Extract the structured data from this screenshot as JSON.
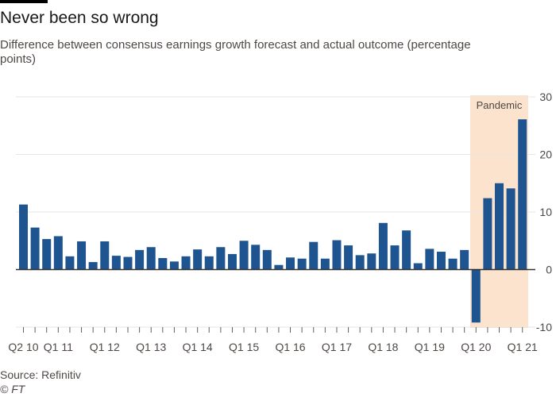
{
  "header": {
    "title": "Never been so wrong",
    "subtitle": "Difference between consensus earnings growth forecast and actual outcome (percentage points)"
  },
  "footer": {
    "source": "Source: Refinitiv",
    "copyright": "© FT"
  },
  "colors": {
    "bar": "#1e548f",
    "shade": "#fbe3ce",
    "grid": "#e9e5e1",
    "zero_line": "#33302e",
    "topbar": "#000000"
  },
  "chart_data": {
    "type": "bar",
    "title": "Never been so wrong",
    "subtitle": "Difference between consensus earnings growth forecast and actual outcome (percentage points)",
    "ylim": [
      -10,
      30
    ],
    "y_ticks": [
      -10,
      0,
      10,
      20,
      30
    ],
    "y_axis_side": "right",
    "grid": true,
    "x_tick_labels": [
      {
        "label": "Q2 10",
        "index": 0
      },
      {
        "label": "Q1 11",
        "index": 3
      },
      {
        "label": "Q1 12",
        "index": 7
      },
      {
        "label": "Q1 13",
        "index": 11
      },
      {
        "label": "Q1 14",
        "index": 15
      },
      {
        "label": "Q1 15",
        "index": 19
      },
      {
        "label": "Q1 16",
        "index": 23
      },
      {
        "label": "Q1 17",
        "index": 27
      },
      {
        "label": "Q1 18",
        "index": 31
      },
      {
        "label": "Q1 19",
        "index": 35
      },
      {
        "label": "Q1 20",
        "index": 39
      },
      {
        "label": "Q1 21",
        "index": 43
      }
    ],
    "categories": [
      "Q2 10",
      "Q3 10",
      "Q4 10",
      "Q1 11",
      "Q2 11",
      "Q3 11",
      "Q4 11",
      "Q1 12",
      "Q2 12",
      "Q3 12",
      "Q4 12",
      "Q1 13",
      "Q2 13",
      "Q3 13",
      "Q4 13",
      "Q1 14",
      "Q2 14",
      "Q3 14",
      "Q4 14",
      "Q1 15",
      "Q2 15",
      "Q3 15",
      "Q4 15",
      "Q1 16",
      "Q2 16",
      "Q3 16",
      "Q4 16",
      "Q1 17",
      "Q2 17",
      "Q3 17",
      "Q4 17",
      "Q1 18",
      "Q2 18",
      "Q3 18",
      "Q4 18",
      "Q1 19",
      "Q2 19",
      "Q3 19",
      "Q4 19",
      "Q1 20",
      "Q2 20",
      "Q3 20",
      "Q4 20",
      "Q1 21"
    ],
    "values": [
      11.3,
      7.3,
      5.3,
      5.8,
      2.3,
      4.9,
      1.3,
      4.9,
      2.4,
      2.2,
      3.4,
      3.9,
      2.0,
      1.4,
      2.3,
      3.5,
      2.3,
      3.9,
      2.7,
      5.0,
      4.3,
      3.4,
      0.8,
      2.1,
      1.9,
      4.8,
      1.9,
      5.1,
      4.2,
      2.5,
      2.8,
      8.1,
      4.2,
      6.8,
      1.1,
      3.6,
      3.1,
      1.9,
      3.4,
      -9.2,
      12.4,
      15.0,
      14.1,
      26.1
    ],
    "annotation": {
      "label": "Pandemic",
      "start_index": 39,
      "end_index": 43
    }
  }
}
